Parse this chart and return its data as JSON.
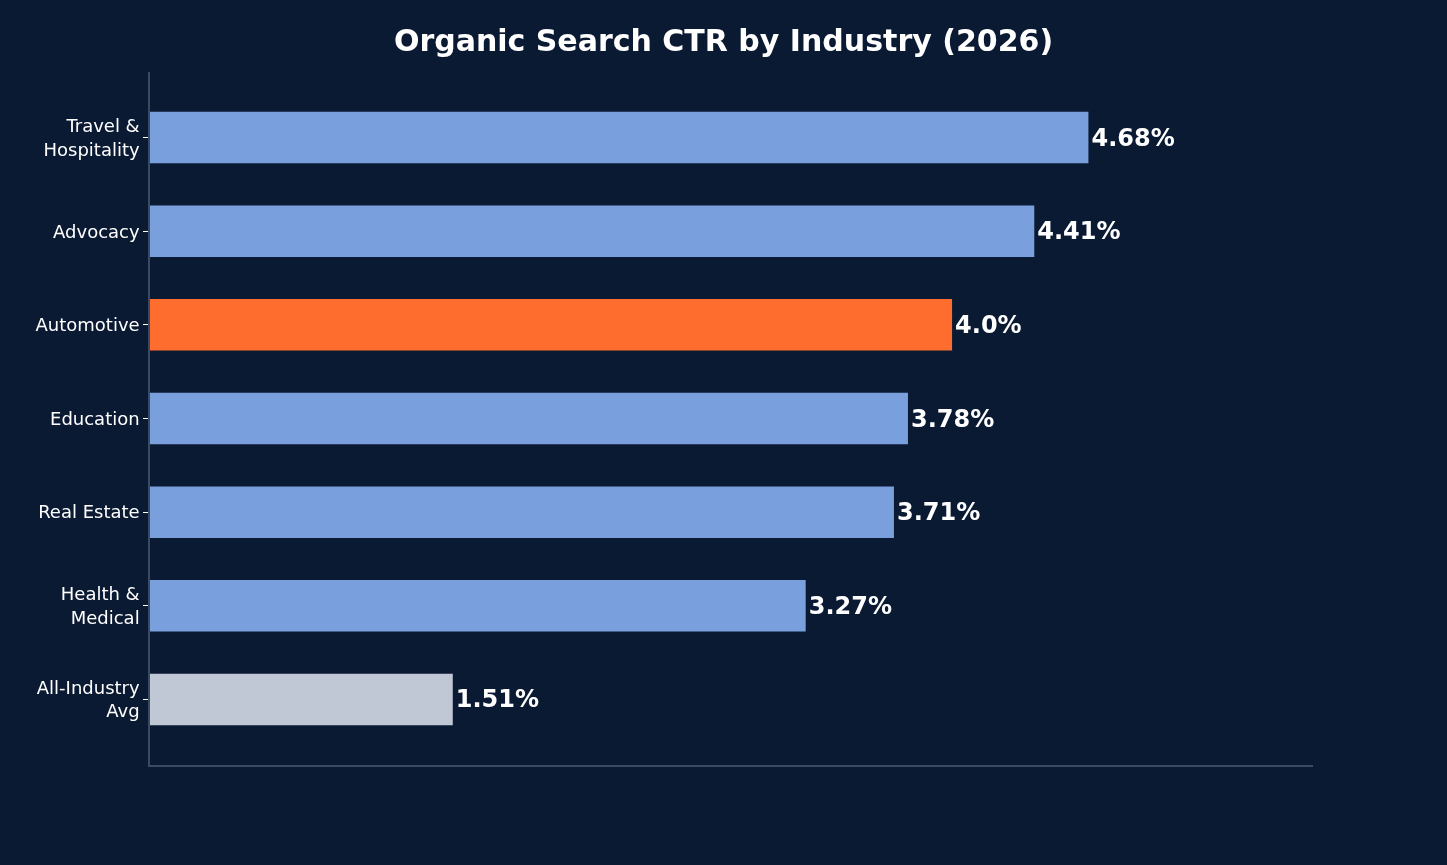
{
  "chart_data": {
    "type": "bar",
    "orientation": "horizontal",
    "title": "Organic Search CTR by Industry (2026)",
    "categories": [
      "Travel &\nHospitality",
      "Advocacy",
      "Automotive",
      "Education",
      "Real Estate",
      "Health &\nMedical",
      "All-Industry\nAvg"
    ],
    "values": [
      4.68,
      4.41,
      4.0,
      3.78,
      3.71,
      3.27,
      1.51
    ],
    "colors": [
      "#79a0dd",
      "#79a0dd",
      "#ff6d2e",
      "#79a0dd",
      "#79a0dd",
      "#79a0dd",
      "#c0c8d6"
    ],
    "value_labels": [
      "4.68%",
      "4.41%",
      "4.0%",
      "3.78%",
      "3.71%",
      "3.27%",
      "1.51%"
    ],
    "xlim": [
      0,
      5.8
    ],
    "tick_labels": "y",
    "legend": false
  }
}
